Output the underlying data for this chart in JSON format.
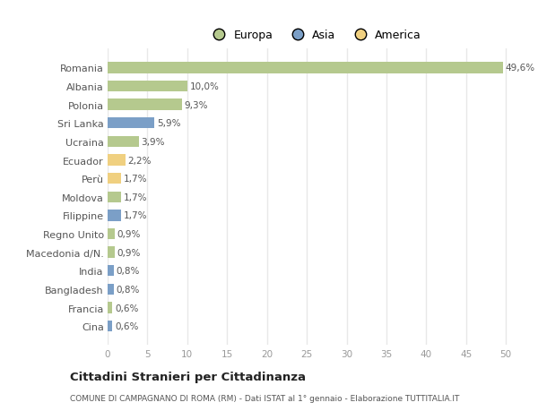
{
  "countries": [
    "Romania",
    "Albania",
    "Polonia",
    "Sri Lanka",
    "Ucraina",
    "Ecuador",
    "Perù",
    "Moldova",
    "Filippine",
    "Regno Unito",
    "Macedonia d/N.",
    "India",
    "Bangladesh",
    "Francia",
    "Cina"
  ],
  "values": [
    49.6,
    10.0,
    9.3,
    5.9,
    3.9,
    2.2,
    1.7,
    1.7,
    1.7,
    0.9,
    0.9,
    0.8,
    0.8,
    0.6,
    0.6
  ],
  "labels": [
    "49,6%",
    "10,0%",
    "9,3%",
    "5,9%",
    "3,9%",
    "2,2%",
    "1,7%",
    "1,7%",
    "1,7%",
    "0,9%",
    "0,9%",
    "0,8%",
    "0,8%",
    "0,6%",
    "0,6%"
  ],
  "continents": [
    "Europa",
    "Europa",
    "Europa",
    "Asia",
    "Europa",
    "America",
    "America",
    "Europa",
    "Asia",
    "Europa",
    "Europa",
    "Asia",
    "Asia",
    "Europa",
    "Asia"
  ],
  "continent_colors": {
    "Europa": "#b5c98e",
    "Asia": "#7b9fc7",
    "America": "#f0d080"
  },
  "legend_labels": [
    "Europa",
    "Asia",
    "America"
  ],
  "legend_colors": [
    "#b5c98e",
    "#7b9fc7",
    "#f0d080"
  ],
  "title": "Cittadini Stranieri per Cittadinanza",
  "subtitle": "COMUNE DI CAMPAGNANO DI ROMA (RM) - Dati ISTAT al 1° gennaio - Elaborazione TUTTITALIA.IT",
  "xlim": [
    0,
    52
  ],
  "xticks": [
    0,
    5,
    10,
    15,
    20,
    25,
    30,
    35,
    40,
    45,
    50
  ],
  "background_color": "#ffffff",
  "plot_bg_color": "#ffffff",
  "grid_color": "#e8e8e8",
  "bar_height": 0.6,
  "label_fontsize": 7.5,
  "ytick_fontsize": 8,
  "xtick_fontsize": 7.5
}
